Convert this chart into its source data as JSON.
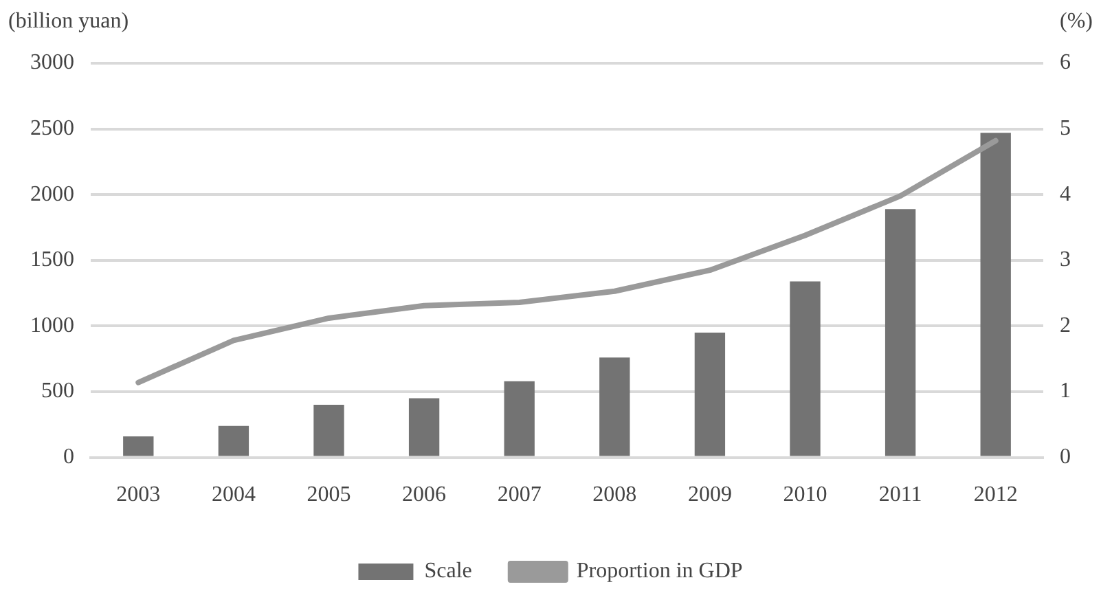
{
  "chart_data": {
    "type": "bar",
    "ylabel": "(billion yuan)",
    "y2label": "(%)",
    "categories": [
      "2003",
      "2004",
      "2005",
      "2006",
      "2007",
      "2008",
      "2009",
      "2010",
      "2011",
      "2012"
    ],
    "series": [
      {
        "name": "Scale",
        "color": "#737373",
        "values": [
          160,
          240,
          400,
          450,
          580,
          760,
          950,
          1340,
          1890,
          2470
        ]
      },
      {
        "name": "Proportion in GDP",
        "type": "line",
        "axis": "y2",
        "color": "#9a9a9a",
        "values": [
          1.14,
          1.78,
          2.12,
          2.31,
          2.36,
          2.53,
          2.85,
          3.38,
          3.98,
          4.82
        ]
      }
    ],
    "ylim": [
      0,
      3000
    ],
    "yticks": [
      0,
      500,
      1000,
      1500,
      2000,
      2500,
      3000
    ],
    "y2lim": [
      0,
      6
    ],
    "y2ticks": [
      0,
      1,
      2,
      3,
      4,
      5,
      6
    ],
    "grid": "y",
    "legend": "bottom",
    "marker": "none",
    "line_style": "solid"
  }
}
